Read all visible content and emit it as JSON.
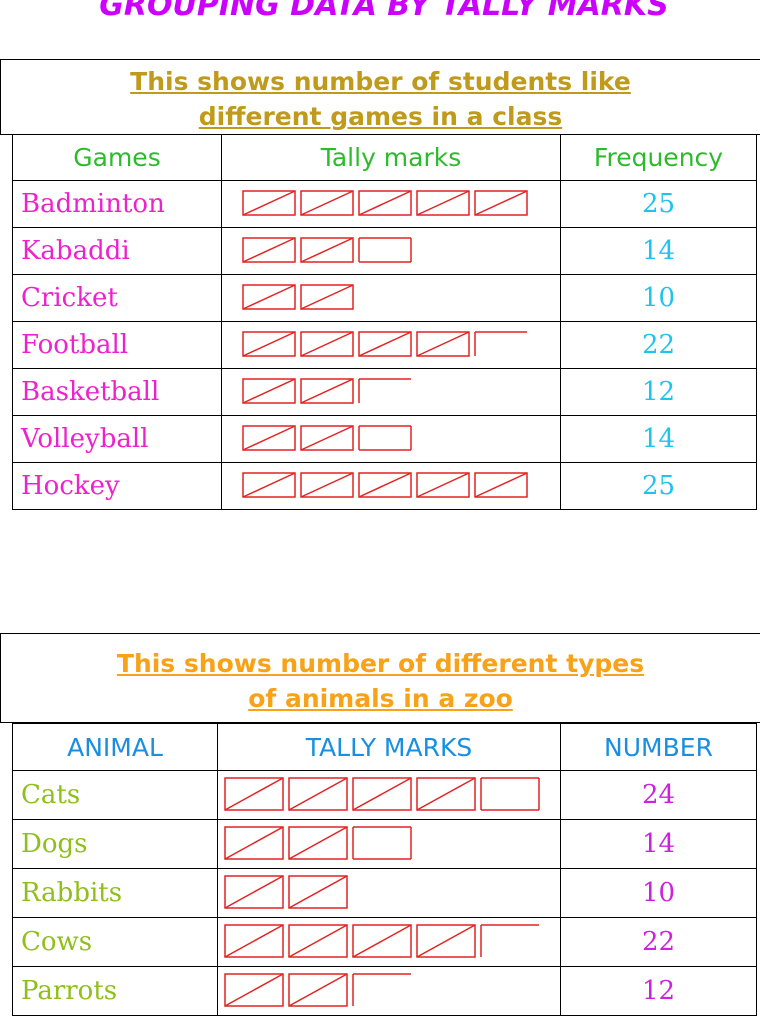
{
  "page_title": "GROUPING DATA BY TALLY MARKS",
  "colors": {
    "title": "#cc00ff",
    "caption1": "#c09a1a",
    "caption2": "#f7a219",
    "table1_header": "#2dbb2d",
    "table1_name": "#ee22cc",
    "table1_number": "#1fc3ee",
    "table2_header": "#1a8fe0",
    "table2_name": "#8fbf1a",
    "table2_number": "#cc22dd",
    "tally": "#e42222"
  },
  "table1": {
    "caption_line1": "This shows number of students like",
    "caption_line2": "different games in a class",
    "headers": [
      "Games",
      "Tally marks",
      "Frequency"
    ],
    "rows": [
      {
        "name": "Badminton",
        "value": "25",
        "count": 25
      },
      {
        "name": "Kabaddi",
        "value": "14",
        "count": 14
      },
      {
        "name": "Cricket",
        "value": "10",
        "count": 10
      },
      {
        "name": "Football",
        "value": "22",
        "count": 22
      },
      {
        "name": "Basketball",
        "value": "12",
        "count": 12
      },
      {
        "name": "Volleyball",
        "value": "14",
        "count": 14
      },
      {
        "name": "Hockey",
        "value": "25",
        "count": 25
      }
    ]
  },
  "table2": {
    "caption_line1": "This shows number of different types",
    "caption_line2": "of animals in a zoo",
    "headers": [
      "ANIMAL",
      "TALLY MARKS",
      "NUMBER"
    ],
    "rows": [
      {
        "name": "Cats",
        "value": "24",
        "count": 24
      },
      {
        "name": "Dogs",
        "value": "14",
        "count": 14
      },
      {
        "name": "Rabbits",
        "value": "10",
        "count": 10
      },
      {
        "name": "Cows",
        "value": "22",
        "count": 22
      },
      {
        "name": "Parrots",
        "value": "12",
        "count": 12
      }
    ]
  }
}
